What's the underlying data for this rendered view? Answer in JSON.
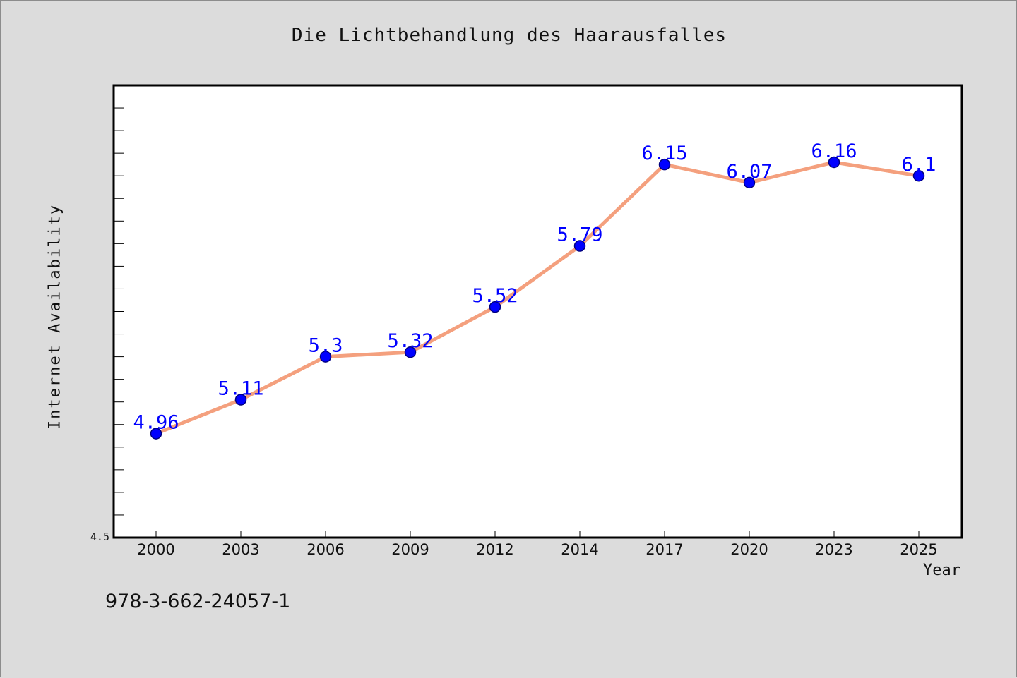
{
  "chart_data": {
    "type": "line",
    "title": "Die Lichtbehandlung des Haarausfalles",
    "xlabel": "Year",
    "ylabel": "Internet Availability",
    "categories": [
      "2000",
      "2003",
      "2006",
      "2009",
      "2012",
      "2014",
      "2017",
      "2020",
      "2023",
      "2025"
    ],
    "series": [
      {
        "values": [
          4.96,
          5.11,
          5.3,
          5.32,
          5.52,
          5.79,
          6.15,
          6.07,
          6.16,
          6.1
        ],
        "data_labels": [
          "4.96",
          "5.11",
          "5.3",
          "5.32",
          "5.52",
          "5.79",
          "6.15",
          "6.07",
          "6.16",
          "6.1"
        ]
      }
    ],
    "ylim": [
      4.5,
      6.5
    ],
    "y_tick_labels": [
      "4.5"
    ],
    "grid": false,
    "colors": {
      "line": "#f4a07e",
      "marker_fill": "#0000ff",
      "marker_edge": "#000080",
      "data_label": "#0000ff",
      "background": "#dcdcdc",
      "plot_background": "#ffffff"
    }
  },
  "footer": {
    "isbn": "978-3-662-24057-1"
  }
}
